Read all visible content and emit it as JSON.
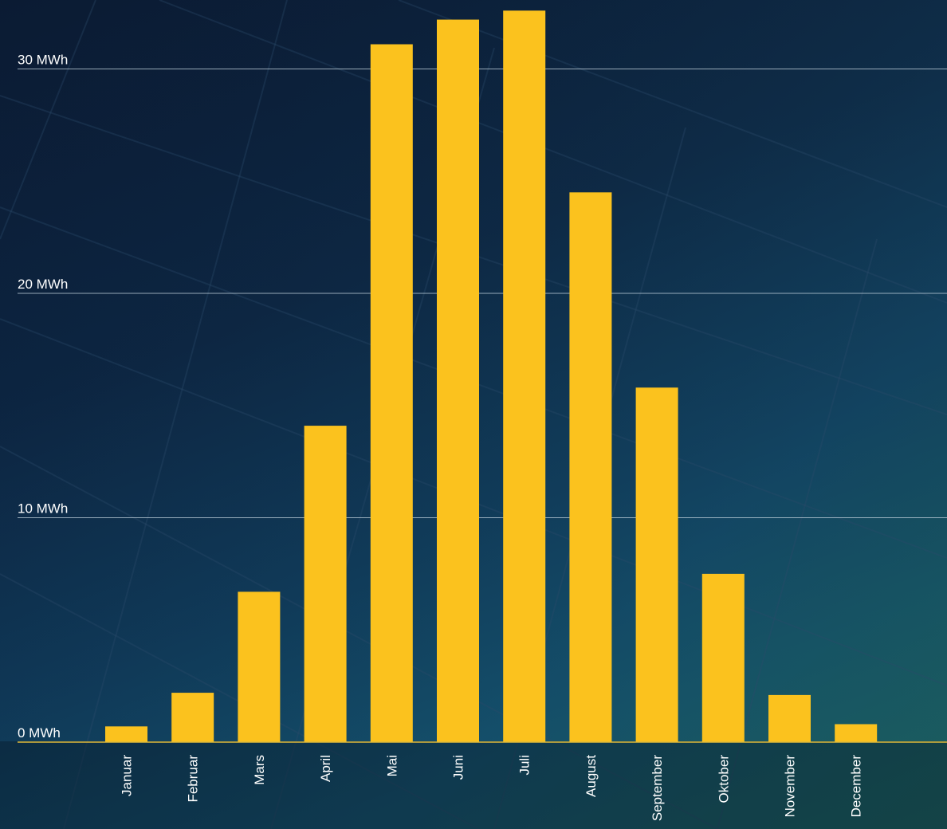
{
  "chart_data": {
    "type": "bar",
    "categories": [
      "Januar",
      "Februar",
      "Mars",
      "April",
      "Mai",
      "Juni",
      "Juli",
      "August",
      "September",
      "Oktober",
      "November",
      "December"
    ],
    "values": [
      0.7,
      2.2,
      6.7,
      14.1,
      31.1,
      32.2,
      32.6,
      24.5,
      15.8,
      7.5,
      2.1,
      0.8
    ],
    "unit": "MWh",
    "yticks": [
      "0 MWh",
      "10 MWh",
      "20 MWh",
      "30 MWh"
    ],
    "ytick_values": [
      0,
      10,
      20,
      30
    ],
    "ylim": [
      0,
      33
    ],
    "title": "",
    "xlabel": "",
    "ylabel": "",
    "grid": true,
    "legend": "none",
    "colors": {
      "bar": "#fbc21e",
      "gridline": "#c6d6e0",
      "baseline": "#e0b93a",
      "label": "#ffffff"
    }
  }
}
